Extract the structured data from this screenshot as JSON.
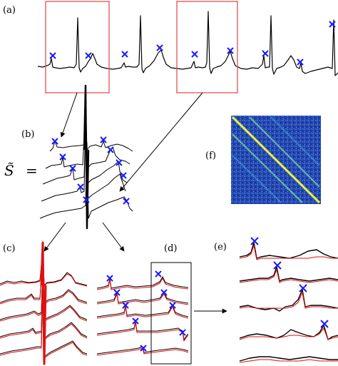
{
  "labels": {
    "a": "(a)",
    "b": "(b)",
    "c": "(c)",
    "d": "(d)",
    "e": "(e)",
    "f": "(f)"
  },
  "equation": {
    "symbol": "S̃",
    "equals": "="
  },
  "colors": {
    "signal": "#000000",
    "reconstruction": "#e01010",
    "marker": "#1a1aff",
    "window_box": "#e05050",
    "matrix_background": "#1f3a9e"
  }
}
